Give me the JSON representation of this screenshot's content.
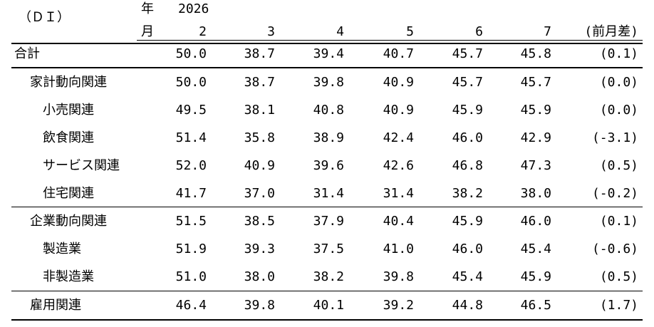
{
  "header": {
    "unit_label": "（ＤＩ）",
    "year_label": "年",
    "year_value": "2026",
    "month_label": "月",
    "months": [
      "2",
      "3",
      "4",
      "5",
      "6",
      "7"
    ],
    "diff_label": "(前月差)"
  },
  "rows": [
    {
      "label": "合計",
      "values": [
        "50.0",
        "38.7",
        "39.4",
        "40.7",
        "45.7",
        "45.8"
      ],
      "diff": "(0.1)"
    },
    {
      "label": "家計動向関連",
      "values": [
        "50.0",
        "38.7",
        "39.8",
        "40.9",
        "45.7",
        "45.7"
      ],
      "diff": "(0.0)"
    },
    {
      "label": "小売関連",
      "values": [
        "49.5",
        "38.1",
        "40.8",
        "40.9",
        "45.9",
        "45.9"
      ],
      "diff": "(0.0)"
    },
    {
      "label": "飲食関連",
      "values": [
        "51.4",
        "35.8",
        "38.9",
        "42.4",
        "46.0",
        "42.9"
      ],
      "diff": "(-3.1)"
    },
    {
      "label": "サービス関連",
      "values": [
        "52.0",
        "40.9",
        "39.6",
        "42.6",
        "46.8",
        "47.3"
      ],
      "diff": "(0.5)"
    },
    {
      "label": "住宅関連",
      "values": [
        "41.7",
        "37.0",
        "31.4",
        "31.4",
        "38.2",
        "38.0"
      ],
      "diff": "(-0.2)"
    },
    {
      "label": "企業動向関連",
      "values": [
        "51.5",
        "38.5",
        "37.9",
        "40.4",
        "45.9",
        "46.0"
      ],
      "diff": "(0.1)"
    },
    {
      "label": "製造業",
      "values": [
        "51.9",
        "39.3",
        "37.5",
        "41.0",
        "46.0",
        "45.4"
      ],
      "diff": "(-0.6)"
    },
    {
      "label": "非製造業",
      "values": [
        "51.0",
        "38.0",
        "38.2",
        "39.8",
        "45.4",
        "45.9"
      ],
      "diff": "(0.5)"
    },
    {
      "label": "雇用関連",
      "values": [
        "46.4",
        "39.8",
        "40.1",
        "39.2",
        "44.8",
        "46.5"
      ],
      "diff": "(1.7)"
    }
  ]
}
